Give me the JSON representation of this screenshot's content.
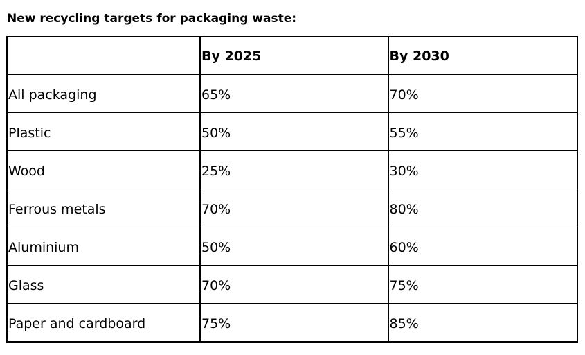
{
  "title": "New recycling targets for packaging waste:",
  "table": {
    "headers": [
      "",
      "By 2025",
      "By 2030"
    ],
    "rows": [
      {
        "material": "All packaging",
        "by_2025": "65%",
        "by_2030": "70%"
      },
      {
        "material": "Plastic",
        "by_2025": "50%",
        "by_2030": "55%"
      },
      {
        "material": "Wood",
        "by_2025": "25%",
        "by_2030": "30%"
      },
      {
        "material": "Ferrous metals",
        "by_2025": "70%",
        "by_2030": "80%"
      },
      {
        "material": "Aluminium",
        "by_2025": "50%",
        "by_2030": "60%"
      },
      {
        "material": "Glass",
        "by_2025": "70%",
        "by_2030": "75%"
      },
      {
        "material": "Paper and cardboard",
        "by_2025": "75%",
        "by_2030": "85%"
      }
    ]
  }
}
